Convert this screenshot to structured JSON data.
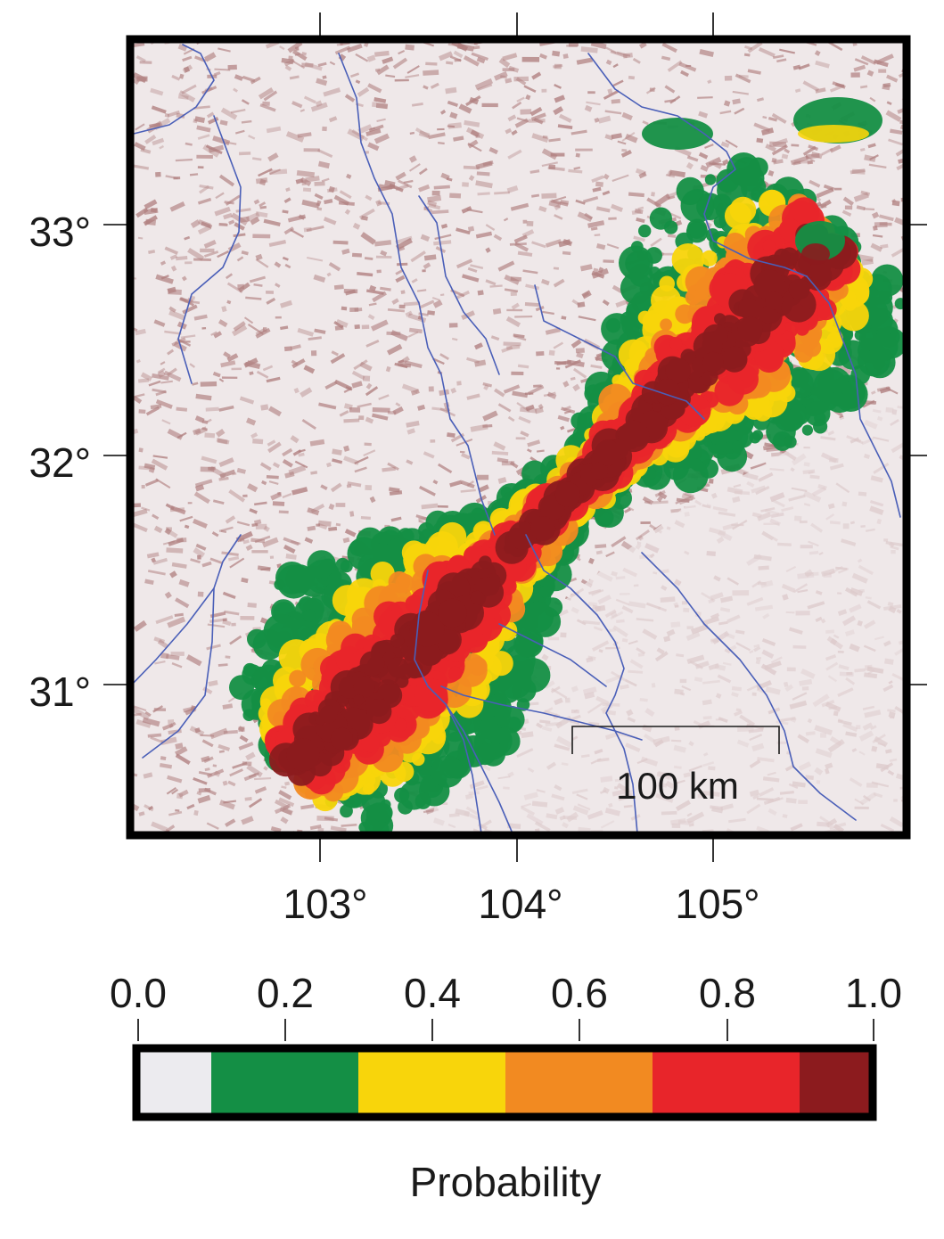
{
  "map": {
    "lat_labels": [
      "33°",
      "32°",
      "31°"
    ],
    "lon_labels": [
      "103°",
      "104°",
      "105°"
    ],
    "scale_bar_label": "100 km"
  },
  "colorbar": {
    "title": "Probability",
    "tick_labels": [
      "0.0",
      "0.2",
      "0.4",
      "0.6",
      "0.8",
      "1.0"
    ],
    "bins": [
      {
        "range": "0.0-0.1",
        "color": "#ecebef"
      },
      {
        "range": "0.1-0.3",
        "color": "#148f45"
      },
      {
        "range": "0.3-0.5",
        "color": "#f8d50b"
      },
      {
        "range": "0.5-0.7",
        "color": "#f28a21"
      },
      {
        "range": "0.7-0.9",
        "color": "#e8252a"
      },
      {
        "range": "0.9-1.0",
        "color": "#8c1b1e"
      }
    ]
  },
  "colors": {
    "terrain_background": "#efe8e9",
    "terrain_hillshade": "#b07f7f",
    "rivers": "#4a5fb8",
    "frame": "#000000"
  }
}
